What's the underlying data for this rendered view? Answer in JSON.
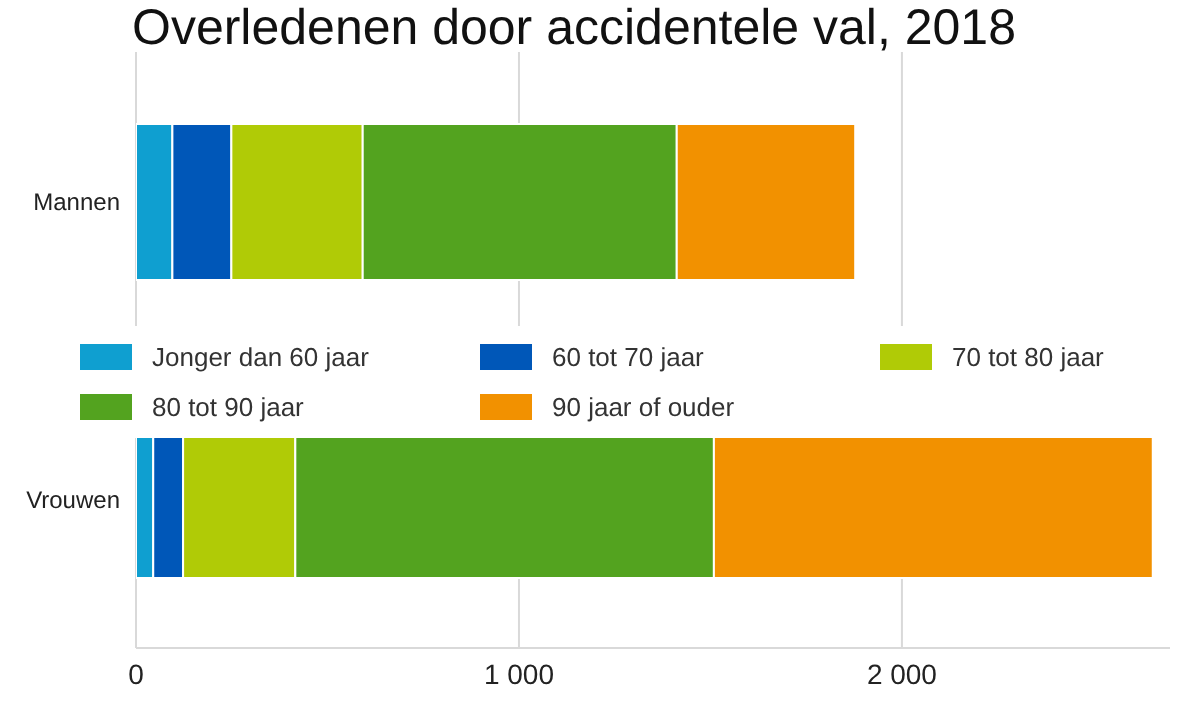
{
  "chart_data": {
    "type": "bar",
    "title": "Overledenen door accidentele val, 2018",
    "orientation": "horizontal",
    "stacked": true,
    "categories": [
      "Mannen",
      "Vrouwen"
    ],
    "series": [
      {
        "name": "Jonger dan 60 jaar",
        "color": "#0f9fd0",
        "values": [
          95,
          45
        ]
      },
      {
        "name": "60 tot 70 jaar",
        "color": "#0057b8",
        "values": [
          154,
          78
        ]
      },
      {
        "name": "70 tot 80 jaar",
        "color": "#b0cb06",
        "values": [
          343,
          293
        ]
      },
      {
        "name": "80 tot 90 jaar",
        "color": "#53a31f",
        "values": [
          820,
          1093
        ]
      },
      {
        "name": "90 jaar of ouder",
        "color": "#f29100",
        "values": [
          466,
          1146
        ]
      }
    ],
    "xlim": [
      0,
      2700
    ],
    "xticks": [
      0,
      {
        "value": 1000,
        "label": "1 000"
      },
      {
        "value": 2000,
        "label": "2 000"
      }
    ],
    "grid": "x",
    "legend": "center"
  }
}
